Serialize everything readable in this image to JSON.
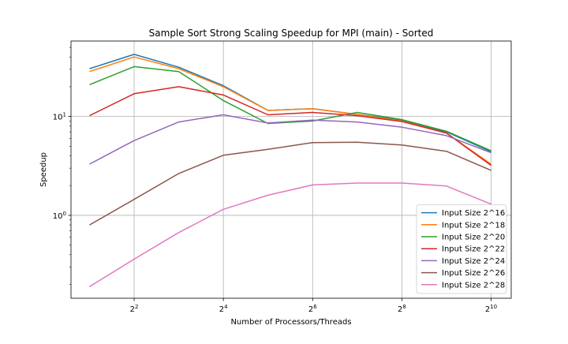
{
  "chart_data": {
    "type": "line",
    "title": "Sample Sort Strong Scaling Speedup for MPI (main) - Sorted",
    "xlabel": "Number of Processors/Threads",
    "ylabel": "Speedup",
    "x_scale": "log2",
    "y_scale": "log10",
    "xlim": [
      1.5,
      1400
    ],
    "ylim": [
      0.145,
      58
    ],
    "grid": true,
    "legend_position": "lower-right",
    "x_ticks": [
      {
        "value": 4,
        "base": "2",
        "exp": "2"
      },
      {
        "value": 16,
        "base": "2",
        "exp": "4"
      },
      {
        "value": 64,
        "base": "2",
        "exp": "6"
      },
      {
        "value": 256,
        "base": "2",
        "exp": "8"
      },
      {
        "value": 1024,
        "base": "2",
        "exp": "10"
      }
    ],
    "y_ticks": [
      {
        "value": 1,
        "base": "10",
        "exp": "0"
      },
      {
        "value": 10,
        "base": "10",
        "exp": "1"
      }
    ],
    "x": [
      2,
      4,
      8,
      16,
      32,
      64,
      128,
      256,
      512,
      1024
    ],
    "series": [
      {
        "name": "Input Size 2^16",
        "color": "#1f77b4",
        "values": [
          30.5,
          42.5,
          31.5,
          20.5,
          11.5,
          12.0,
          10.5,
          9.2,
          7.0,
          4.4
        ]
      },
      {
        "name": "Input Size 2^18",
        "color": "#ff7f0e",
        "values": [
          28.5,
          40.0,
          30.5,
          20.0,
          11.5,
          12.0,
          10.5,
          9.0,
          6.8,
          3.3
        ]
      },
      {
        "name": "Input Size 2^20",
        "color": "#2ca02c",
        "values": [
          21.0,
          32.0,
          28.5,
          14.5,
          8.5,
          9.0,
          11.0,
          9.3,
          7.1,
          4.5
        ]
      },
      {
        "name": "Input Size 2^22",
        "color": "#d62728",
        "values": [
          10.2,
          17.0,
          20.0,
          16.5,
          10.4,
          11.0,
          10.2,
          8.9,
          6.8,
          3.2
        ]
      },
      {
        "name": "Input Size 2^24",
        "color": "#9467bd",
        "values": [
          3.3,
          5.7,
          8.8,
          10.4,
          8.6,
          9.2,
          8.8,
          7.8,
          6.4,
          4.3
        ]
      },
      {
        "name": "Input Size 2^26",
        "color": "#8c564b",
        "values": [
          0.8,
          1.45,
          2.65,
          4.05,
          4.65,
          5.45,
          5.5,
          5.15,
          4.45,
          2.85
        ]
      },
      {
        "name": "Input Size 2^28",
        "color": "#e377c2",
        "values": [
          0.19,
          0.36,
          0.67,
          1.15,
          1.6,
          2.03,
          2.12,
          2.12,
          1.98,
          1.3
        ]
      }
    ]
  }
}
